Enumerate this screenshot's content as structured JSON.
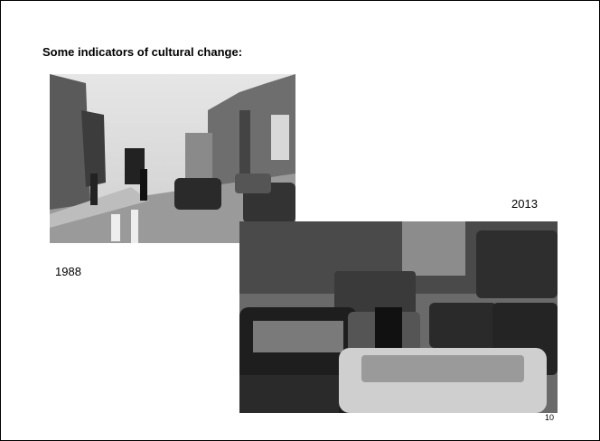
{
  "slide": {
    "title": "Some indicators of cultural change:",
    "images": [
      {
        "caption": "1988"
      },
      {
        "caption": "2013"
      }
    ],
    "page_number": "10"
  }
}
